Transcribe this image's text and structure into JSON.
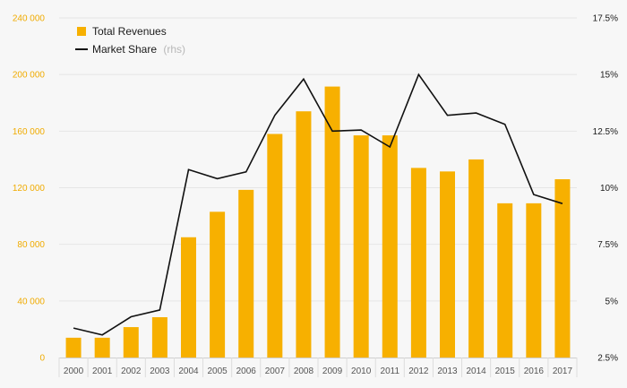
{
  "chart_data": {
    "type": "bar",
    "categories": [
      "2000",
      "2001",
      "2002",
      "2003",
      "2004",
      "2005",
      "2006",
      "2007",
      "2008",
      "2009",
      "2010",
      "2011",
      "2012",
      "2013",
      "2014",
      "2015",
      "2016",
      "2017"
    ],
    "series": [
      {
        "name": "Total Revenues",
        "kind": "bar",
        "axis": "left",
        "color": "#f7b000",
        "values": [
          14000,
          14000,
          21500,
          28500,
          85000,
          103000,
          118500,
          158000,
          174000,
          191500,
          157000,
          157000,
          134000,
          131500,
          140000,
          109000,
          109000,
          126000
        ]
      },
      {
        "name": "Market Share",
        "kind": "line",
        "axis": "right",
        "color": "#111111",
        "values": [
          3.8,
          3.5,
          4.3,
          4.6,
          10.8,
          10.4,
          10.7,
          13.2,
          14.8,
          12.5,
          12.55,
          11.8,
          15.0,
          13.2,
          13.3,
          12.8,
          9.7,
          9.3
        ]
      }
    ],
    "legend": [
      {
        "label": "Total Revenues",
        "note": ""
      },
      {
        "label": "Market Share",
        "note": "(rhs)"
      }
    ],
    "legend_position": "top-left",
    "left_axis": {
      "ylim": [
        0,
        240000
      ],
      "ticks": [
        0,
        40000,
        80000,
        120000,
        160000,
        200000,
        240000
      ],
      "tick_labels": [
        "0",
        "40 000",
        "80 000",
        "120 000",
        "160 000",
        "200 000",
        "240 000"
      ],
      "color": "#f0ab00"
    },
    "right_axis": {
      "ylim": [
        2.5,
        17.5
      ],
      "ticks": [
        2.5,
        5,
        7.5,
        10,
        12.5,
        15,
        17.5
      ],
      "tick_labels": [
        "2.5%",
        "5%",
        "7.5%",
        "10%",
        "12.5%",
        "15%",
        "17.5%"
      ],
      "color": "#1a1a1a"
    },
    "grid": true,
    "title": "",
    "xlabel": "",
    "ylabel": ""
  }
}
